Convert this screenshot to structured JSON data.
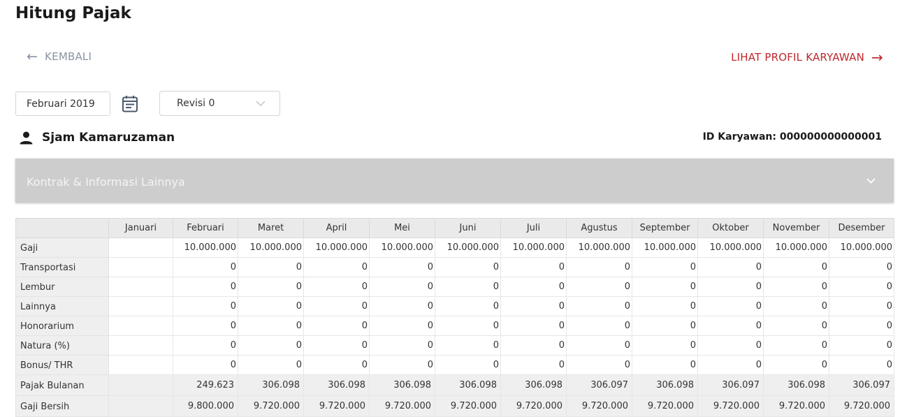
{
  "page": {
    "title": "Hitung Pajak"
  },
  "nav": {
    "back_label": "KEMBALI",
    "profile_label": "LIHAT PROFIL KARYAWAN"
  },
  "filters": {
    "period": "Februari 2019",
    "revision": "Revisi 0"
  },
  "employee": {
    "name": "Sjam Kamaruzaman",
    "id_label": "ID Karyawan: 000000000000001"
  },
  "accordion": {
    "label": "Kontrak & Informasi Lainnya"
  },
  "table": {
    "columns": [
      "",
      "Januari",
      "Februari",
      "Maret",
      "April",
      "Mei",
      "Juni",
      "Juli",
      "Agustus",
      "September",
      "Oktober",
      "November",
      "Desember"
    ],
    "rows": [
      {
        "label": "Gaji",
        "values": [
          "",
          "10.000.000",
          "10.000.000",
          "10.000.000",
          "10.000.000",
          "10.000.000",
          "10.000.000",
          "10.000.000",
          "10.000.000",
          "10.000.000",
          "10.000.000",
          "10.000.000"
        ]
      },
      {
        "label": "Transportasi",
        "values": [
          "",
          "0",
          "0",
          "0",
          "0",
          "0",
          "0",
          "0",
          "0",
          "0",
          "0",
          "0"
        ]
      },
      {
        "label": "Lembur",
        "values": [
          "",
          "0",
          "0",
          "0",
          "0",
          "0",
          "0",
          "0",
          "0",
          "0",
          "0",
          "0"
        ]
      },
      {
        "label": "Lainnya",
        "values": [
          "",
          "0",
          "0",
          "0",
          "0",
          "0",
          "0",
          "0",
          "0",
          "0",
          "0",
          "0"
        ]
      },
      {
        "label": "Honorarium",
        "values": [
          "",
          "0",
          "0",
          "0",
          "0",
          "0",
          "0",
          "0",
          "0",
          "0",
          "0",
          "0"
        ]
      },
      {
        "label": "Natura (%)",
        "values": [
          "",
          "0",
          "0",
          "0",
          "0",
          "0",
          "0",
          "0",
          "0",
          "0",
          "0",
          "0"
        ]
      },
      {
        "label": "Bonus/ THR",
        "values": [
          "",
          "0",
          "0",
          "0",
          "0",
          "0",
          "0",
          "0",
          "0",
          "0",
          "0",
          "0"
        ]
      },
      {
        "label": "Pajak Bulanan",
        "values": [
          "",
          "249.623",
          "306.098",
          "306.098",
          "306.098",
          "306.098",
          "306.098",
          "306.097",
          "306.098",
          "306.097",
          "306.098",
          "306.097"
        ]
      },
      {
        "label": "Gaji Bersih",
        "values": [
          "",
          "9.800.000",
          "9.720.000",
          "9.720.000",
          "9.720.000",
          "9.720.000",
          "9.720.000",
          "9.720.000",
          "9.720.000",
          "9.720.000",
          "9.720.000",
          "9.720.000"
        ]
      }
    ]
  },
  "icons": {
    "back": "arrow-left-icon",
    "profile": "arrow-right-icon",
    "calendar": "calendar-icon",
    "select": "chevron-down-icon",
    "person": "person-icon",
    "accordion": "chevron-down-icon"
  },
  "colors": {
    "accent": "#c0272d",
    "muted": "#8a93a2",
    "accordion_bg": "#cdcdcd",
    "header_bg": "#eaeaea"
  }
}
